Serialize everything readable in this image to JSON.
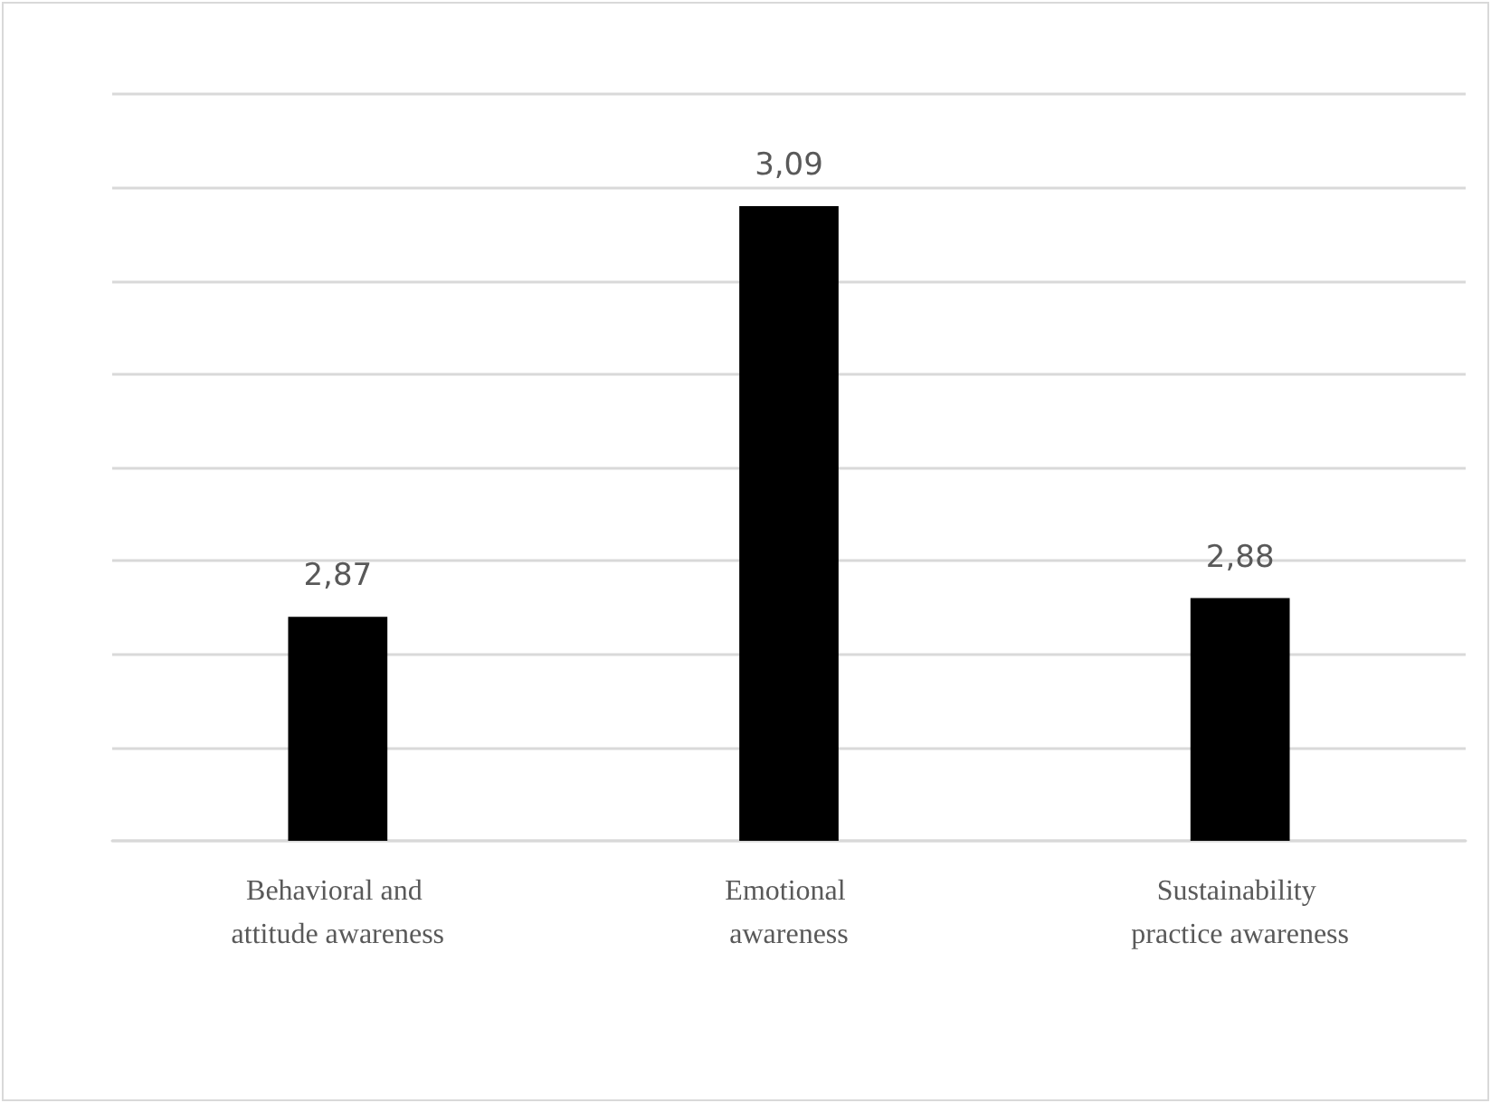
{
  "chart_data": {
    "type": "bar",
    "categories": [
      "Behavioral and attitude awareness",
      "Emotional awareness",
      "Sustainability practice awareness"
    ],
    "values": [
      2.87,
      3.09,
      2.88
    ],
    "value_labels": [
      "2,87",
      "3,09",
      "2,88"
    ],
    "color": "#000000",
    "ylim": [
      2.75,
      3.15
    ],
    "yticks": [
      {
        "value": 2.75,
        "label": null
      },
      {
        "value": 2.8,
        "label": null
      },
      {
        "value": 2.85,
        "label": null
      },
      {
        "value": 2.9,
        "label": null
      },
      {
        "value": 2.95,
        "label": null
      },
      {
        "value": 3.0,
        "label": null
      },
      {
        "value": 3.05,
        "label": null
      },
      {
        "value": 3.1,
        "label": null
      },
      {
        "value": 3.15,
        "label": null
      }
    ],
    "tick_labels": "x",
    "grid": "y"
  }
}
